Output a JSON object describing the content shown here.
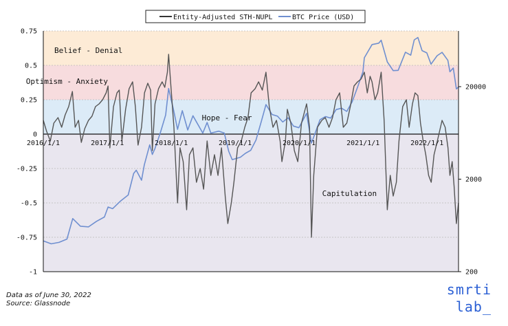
{
  "chart_data": {
    "type": "line",
    "legend": {
      "placement": "top-center",
      "entries": [
        {
          "label": "Entity-Adjusted STH-NUPL",
          "color": "#333333"
        },
        {
          "label": "BTC Price (USD)",
          "color": "#6f8fd0"
        }
      ]
    },
    "x_axis": {
      "type": "date",
      "range": [
        "2016-01-01",
        "2022-06-30"
      ],
      "ticks": [
        "2016/1/1",
        "2017/1/1",
        "2018/1/1",
        "2019/1/1",
        "2020/1/1",
        "2021/1/1",
        "2022/1/1"
      ],
      "tick_values": [
        "2016-01-01",
        "2017-01-01",
        "2018-01-01",
        "2019-01-01",
        "2020-01-01",
        "2021-01-01",
        "2022-01-01"
      ]
    },
    "y_left": {
      "range": [
        -1,
        0.75
      ],
      "ticks": [
        "0.75",
        "0.5",
        "0.25",
        "0",
        "-0.25",
        "-0.5",
        "-0.75",
        "-1"
      ],
      "tick_values": [
        0.75,
        0.5,
        0.25,
        0,
        -0.25,
        -0.5,
        -0.75,
        -1
      ]
    },
    "y_right": {
      "scale": "log",
      "range": [
        200,
        80000
      ],
      "ticks": [
        "20000",
        "2000",
        "200"
      ],
      "tick_values": [
        20000,
        2000,
        200
      ]
    },
    "zones": [
      {
        "label": "Belief - Denial",
        "from": 0.5,
        "to": 0.75,
        "color": "#fdebd6"
      },
      {
        "label": "Optimism - Anxiety",
        "from": 0.25,
        "to": 0.5,
        "color": "#f7dcde"
      },
      {
        "label": "Hope - Fear",
        "from": 0,
        "to": 0.25,
        "color": "#dcebf7"
      },
      {
        "label": "Capitulation",
        "from": -1,
        "to": 0,
        "color": "#e9e6ef"
      }
    ],
    "zone_label_positions": {
      "Belief - Denial": [
        "2016-09-15",
        0.61
      ],
      "Optimism - Anxiety": [
        "2016-05-15",
        0.385
      ],
      "Hope - Fear": [
        "2018-11-15",
        0.12
      ],
      "Capitulation": [
        "2020-10-15",
        -0.43
      ]
    },
    "series": [
      {
        "name": "Entity-Adjusted STH-NUPL",
        "axis": "left",
        "x": [
          "2016-01-01",
          "2016-01-20",
          "2016-02-10",
          "2016-03-01",
          "2016-03-25",
          "2016-04-15",
          "2016-05-05",
          "2016-05-25",
          "2016-06-15",
          "2016-07-01",
          "2016-07-20",
          "2016-08-05",
          "2016-08-25",
          "2016-09-15",
          "2016-10-05",
          "2016-10-25",
          "2016-11-15",
          "2016-12-05",
          "2016-12-25",
          "2017-01-05",
          "2017-01-15",
          "2017-02-05",
          "2017-02-25",
          "2017-03-10",
          "2017-03-25",
          "2017-04-15",
          "2017-05-05",
          "2017-05-25",
          "2017-06-10",
          "2017-06-25",
          "2017-07-15",
          "2017-08-01",
          "2017-08-20",
          "2017-09-05",
          "2017-09-15",
          "2017-09-30",
          "2017-10-20",
          "2017-11-10",
          "2017-11-25",
          "2017-12-10",
          "2017-12-17",
          "2017-12-30",
          "2018-01-16",
          "2018-02-06",
          "2018-02-20",
          "2018-03-10",
          "2018-03-30",
          "2018-04-15",
          "2018-05-05",
          "2018-05-25",
          "2018-06-15",
          "2018-07-05",
          "2018-07-25",
          "2018-08-15",
          "2018-09-05",
          "2018-09-25",
          "2018-10-15",
          "2018-11-05",
          "2018-11-20",
          "2018-12-10",
          "2018-12-25",
          "2019-01-15",
          "2019-02-05",
          "2019-02-25",
          "2019-03-15",
          "2019-04-02",
          "2019-04-25",
          "2019-05-15",
          "2019-06-05",
          "2019-06-26",
          "2019-07-15",
          "2019-08-05",
          "2019-08-25",
          "2019-09-15",
          "2019-09-25",
          "2019-10-15",
          "2019-10-26",
          "2019-11-15",
          "2019-12-05",
          "2019-12-25",
          "2020-01-15",
          "2020-02-13",
          "2020-03-01",
          "2020-03-12",
          "2020-03-25",
          "2020-04-15",
          "2020-05-10",
          "2020-05-30",
          "2020-06-20",
          "2020-07-10",
          "2020-07-30",
          "2020-08-20",
          "2020-09-10",
          "2020-09-30",
          "2020-10-20",
          "2020-11-10",
          "2020-11-30",
          "2020-12-20",
          "2021-01-08",
          "2021-01-25",
          "2021-02-10",
          "2021-02-21",
          "2021-03-10",
          "2021-03-25",
          "2021-04-14",
          "2021-05-01",
          "2021-05-19",
          "2021-06-05",
          "2021-06-22",
          "2021-07-10",
          "2021-07-25",
          "2021-08-15",
          "2021-09-05",
          "2021-09-21",
          "2021-10-10",
          "2021-10-25",
          "2021-11-10",
          "2021-11-25",
          "2021-12-10",
          "2021-12-25",
          "2022-01-10",
          "2022-01-25",
          "2022-02-10",
          "2022-03-01",
          "2022-03-28",
          "2022-04-15",
          "2022-05-01",
          "2022-05-12",
          "2022-05-25",
          "2022-06-05",
          "2022-06-18",
          "2022-06-30"
        ],
        "y": [
          0.1,
          0.02,
          -0.05,
          0.08,
          0.12,
          0.05,
          0.14,
          0.2,
          0.31,
          0.05,
          0.1,
          -0.06,
          0.04,
          0.1,
          0.13,
          0.2,
          0.22,
          0.25,
          0.3,
          0.35,
          -0.1,
          0.2,
          0.3,
          0.32,
          -0.05,
          0.18,
          0.33,
          0.38,
          0.2,
          -0.08,
          0.05,
          0.3,
          0.37,
          0.32,
          -0.12,
          0.22,
          0.33,
          0.38,
          0.34,
          0.45,
          0.58,
          0.35,
          0.05,
          -0.5,
          -0.1,
          -0.2,
          -0.55,
          -0.15,
          -0.1,
          -0.35,
          -0.25,
          -0.4,
          -0.05,
          -0.3,
          -0.15,
          -0.3,
          -0.1,
          -0.45,
          -0.65,
          -0.5,
          -0.35,
          -0.1,
          -0.05,
          0.05,
          0.12,
          0.3,
          0.33,
          0.38,
          0.32,
          0.45,
          0.2,
          0.05,
          0.1,
          -0.05,
          -0.2,
          -0.05,
          0.18,
          0.08,
          -0.12,
          -0.2,
          0.08,
          0.22,
          0.05,
          -0.75,
          -0.3,
          0.05,
          0.1,
          0.12,
          0.05,
          0.12,
          0.25,
          0.3,
          0.05,
          0.08,
          0.2,
          0.35,
          0.38,
          0.4,
          0.45,
          0.3,
          0.42,
          0.38,
          0.25,
          0.3,
          0.45,
          0.1,
          -0.55,
          -0.3,
          -0.45,
          -0.35,
          -0.05,
          0.2,
          0.25,
          0.05,
          0.22,
          0.3,
          0.28,
          0.08,
          -0.05,
          -0.15,
          -0.3,
          -0.35,
          -0.15,
          -0.05,
          0.1,
          0.05,
          -0.1,
          -0.3,
          -0.2,
          -0.38,
          -0.65,
          -0.5
        ]
      },
      {
        "name": "BTC Price (USD)",
        "axis": "right",
        "x": [
          "2016-01-01",
          "2016-02-15",
          "2016-03-31",
          "2016-05-15",
          "2016-06-17",
          "2016-07-31",
          "2016-09-15",
          "2016-10-31",
          "2016-12-15",
          "2017-01-05",
          "2017-01-31",
          "2017-03-15",
          "2017-04-30",
          "2017-05-31",
          "2017-06-15",
          "2017-07-15",
          "2017-07-31",
          "2017-08-31",
          "2017-09-15",
          "2017-09-30",
          "2017-10-31",
          "2017-11-30",
          "2017-12-17",
          "2018-01-15",
          "2018-02-06",
          "2018-03-05",
          "2018-04-05",
          "2018-05-05",
          "2018-06-30",
          "2018-07-25",
          "2018-08-15",
          "2018-09-30",
          "2018-10-31",
          "2018-11-25",
          "2018-12-15",
          "2019-01-31",
          "2019-02-28",
          "2019-03-31",
          "2019-04-30",
          "2019-05-31",
          "2019-06-26",
          "2019-07-31",
          "2019-08-31",
          "2019-09-30",
          "2019-10-31",
          "2019-11-30",
          "2019-12-31",
          "2020-02-13",
          "2020-03-12",
          "2020-04-30",
          "2020-05-31",
          "2020-06-30",
          "2020-07-31",
          "2020-08-31",
          "2020-09-30",
          "2020-10-31",
          "2020-11-30",
          "2020-12-31",
          "2021-01-08",
          "2021-02-21",
          "2021-03-31",
          "2021-04-14",
          "2021-05-19",
          "2021-06-22",
          "2021-07-20",
          "2021-08-31",
          "2021-09-30",
          "2021-10-20",
          "2021-11-10",
          "2021-12-04",
          "2021-12-31",
          "2022-01-24",
          "2022-02-28",
          "2022-03-28",
          "2022-04-30",
          "2022-05-12",
          "2022-05-31",
          "2022-06-18",
          "2022-06-30"
        ],
        "y": [
          430,
          400,
          415,
          450,
          750,
          620,
          610,
          700,
          780,
          1000,
          960,
          1150,
          1350,
          2300,
          2500,
          1950,
          2850,
          4700,
          3700,
          4300,
          6400,
          9900,
          19100,
          11000,
          6900,
          11000,
          6800,
          9700,
          6300,
          8200,
          6300,
          6600,
          6300,
          4000,
          3250,
          3450,
          3800,
          4100,
          5300,
          8500,
          12800,
          10000,
          9600,
          8300,
          9200,
          7500,
          7200,
          10300,
          4900,
          8800,
          9500,
          9150,
          11300,
          11700,
          10800,
          13800,
          19700,
          29000,
          41000,
          57000,
          59000,
          63500,
          37000,
          29800,
          30000,
          47100,
          43800,
          64000,
          68000,
          49000,
          46300,
          35000,
          43200,
          47000,
          38500,
          29000,
          31800,
          18900,
          19800
        ]
      }
    ]
  },
  "footer": {
    "line1": "Data as of June 30, 2022",
    "line2": "Source: Glassnode"
  },
  "brand": {
    "line1": "smrti",
    "line2": "lab_",
    "color": "#2a5fd4"
  }
}
